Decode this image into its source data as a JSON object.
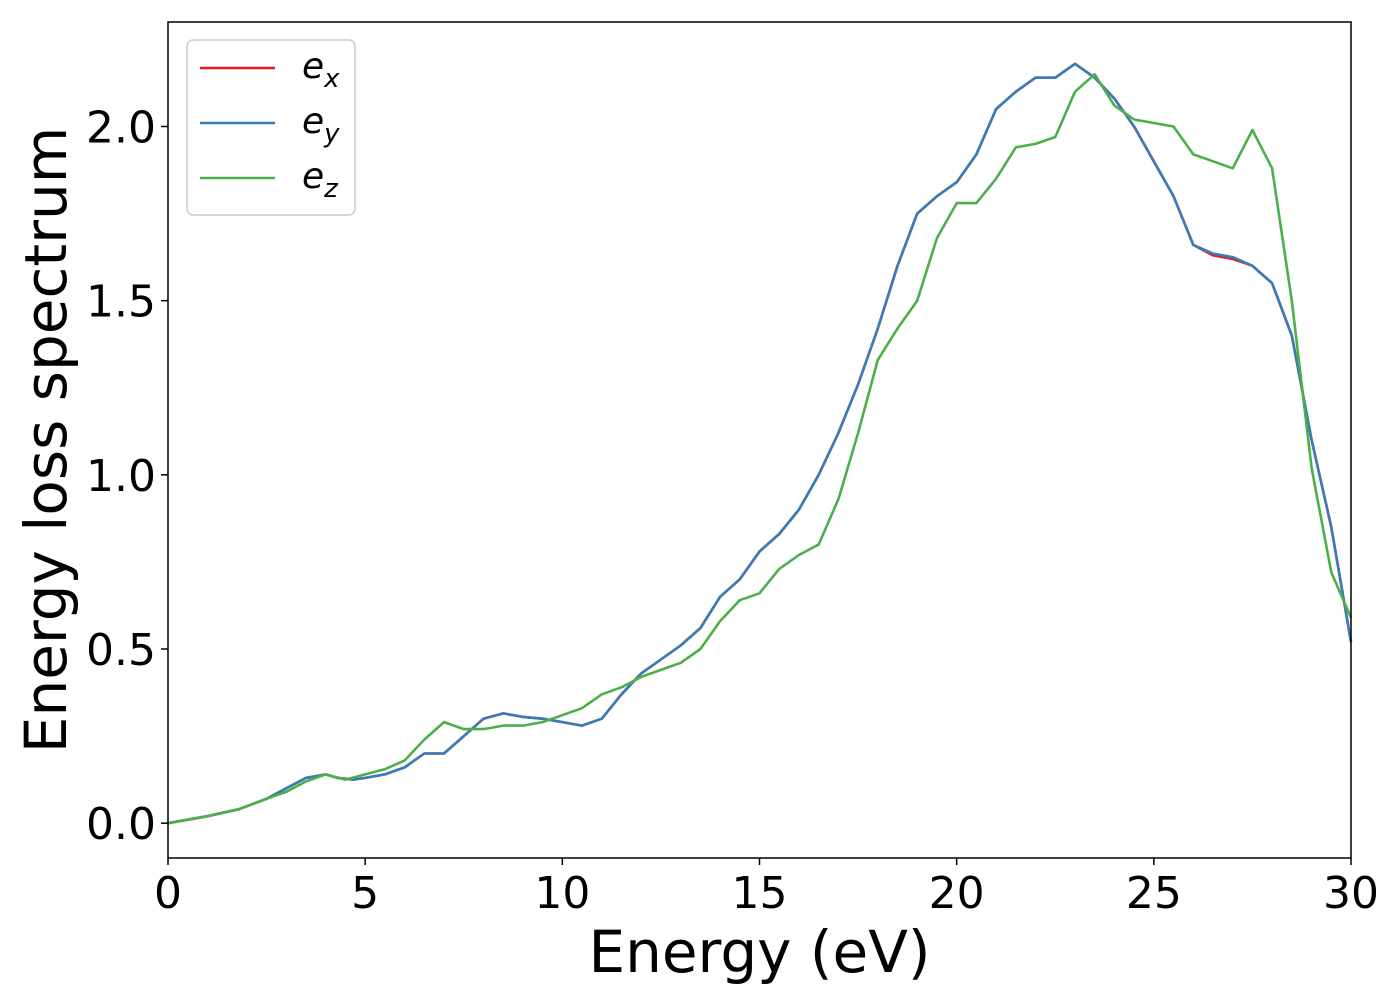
{
  "chart_data": {
    "type": "line",
    "xlabel": "Energy (eV)",
    "ylabel": "Energy loss spectrum",
    "xlim": [
      0,
      30
    ],
    "ylim": [
      -0.1,
      2.3
    ],
    "xticks": [
      0,
      5,
      10,
      15,
      20,
      25,
      30
    ],
    "xtick_labels": [
      "0",
      "5",
      "10",
      "15",
      "20",
      "25",
      "30"
    ],
    "yticks": [
      0.0,
      0.5,
      1.0,
      1.5,
      2.0
    ],
    "ytick_labels": [
      "0.0",
      "0.5",
      "1.0",
      "1.5",
      "2.0"
    ],
    "grid": false,
    "legend_position": "top-left",
    "series": [
      {
        "name": "e_x",
        "label_base": "e",
        "label_sub": "x",
        "color": "#e41a1c",
        "x": [
          0,
          1,
          1.8,
          2.5,
          3,
          3.5,
          4,
          4.3,
          4.7,
          5,
          5.5,
          6,
          6.5,
          7,
          7.5,
          8,
          8.5,
          9,
          9.5,
          10,
          10.5,
          11,
          11.5,
          12,
          12.5,
          13,
          13.5,
          14,
          14.5,
          15,
          15.5,
          16,
          16.5,
          17,
          17.5,
          18,
          18.5,
          19,
          19.5,
          20,
          20.5,
          21,
          21.5,
          22,
          22.5,
          23,
          23.5,
          24,
          24.5,
          25,
          25.5,
          26,
          26.5,
          27,
          27.5,
          28,
          28.5,
          29,
          29.5,
          30
        ],
        "y": [
          0,
          0.02,
          0.04,
          0.07,
          0.1,
          0.13,
          0.14,
          0.13,
          0.125,
          0.13,
          0.14,
          0.16,
          0.2,
          0.2,
          0.25,
          0.3,
          0.315,
          0.305,
          0.3,
          0.29,
          0.28,
          0.3,
          0.37,
          0.43,
          0.47,
          0.51,
          0.56,
          0.65,
          0.7,
          0.78,
          0.83,
          0.9,
          1.0,
          1.12,
          1.26,
          1.42,
          1.6,
          1.75,
          1.8,
          1.84,
          1.92,
          2.05,
          2.1,
          2.14,
          2.14,
          2.18,
          2.14,
          2.08,
          2.0,
          1.9,
          1.8,
          1.66,
          1.63,
          1.62,
          1.6,
          1.55,
          1.4,
          1.1,
          0.85,
          0.52
        ]
      },
      {
        "name": "e_y",
        "label_base": "e",
        "label_sub": "y",
        "color": "#377eb8",
        "x": [
          0,
          1,
          1.8,
          2.5,
          3,
          3.5,
          4,
          4.3,
          4.7,
          5,
          5.5,
          6,
          6.5,
          7,
          7.5,
          8,
          8.5,
          9,
          9.5,
          10,
          10.5,
          11,
          11.5,
          12,
          12.5,
          13,
          13.5,
          14,
          14.5,
          15,
          15.5,
          16,
          16.5,
          17,
          17.5,
          18,
          18.5,
          19,
          19.5,
          20,
          20.5,
          21,
          21.5,
          22,
          22.5,
          23,
          23.5,
          24,
          24.5,
          25,
          25.5,
          26,
          26.5,
          27,
          27.5,
          28,
          28.5,
          29,
          29.5,
          30
        ],
        "y": [
          0,
          0.02,
          0.04,
          0.07,
          0.1,
          0.13,
          0.14,
          0.13,
          0.125,
          0.13,
          0.14,
          0.16,
          0.2,
          0.2,
          0.25,
          0.3,
          0.315,
          0.305,
          0.3,
          0.29,
          0.28,
          0.3,
          0.37,
          0.43,
          0.47,
          0.51,
          0.56,
          0.65,
          0.7,
          0.78,
          0.83,
          0.9,
          1.0,
          1.12,
          1.26,
          1.42,
          1.6,
          1.75,
          1.8,
          1.84,
          1.92,
          2.05,
          2.1,
          2.14,
          2.14,
          2.18,
          2.14,
          2.08,
          2.0,
          1.9,
          1.8,
          1.66,
          1.635,
          1.625,
          1.6,
          1.55,
          1.4,
          1.1,
          0.85,
          0.52
        ]
      },
      {
        "name": "e_z",
        "label_base": "e",
        "label_sub": "z",
        "color": "#4daf4a",
        "x": [
          0,
          1,
          1.8,
          2.5,
          3,
          3.5,
          4,
          4.5,
          5,
          5.5,
          6,
          6.5,
          7,
          7.5,
          8,
          8.5,
          9,
          9.5,
          10,
          10.5,
          11,
          11.5,
          12,
          12.5,
          13,
          13.5,
          14,
          14.5,
          15,
          15.5,
          16,
          16.5,
          17,
          17.5,
          18,
          18.5,
          19,
          19.5,
          20,
          20.5,
          21,
          21.5,
          22,
          22.5,
          23,
          23.5,
          24,
          24.5,
          25,
          25.5,
          26,
          26.5,
          27,
          27.5,
          28,
          28.5,
          29,
          29.5,
          30
        ],
        "y": [
          0,
          0.02,
          0.04,
          0.07,
          0.09,
          0.12,
          0.14,
          0.125,
          0.14,
          0.155,
          0.18,
          0.24,
          0.29,
          0.27,
          0.27,
          0.28,
          0.28,
          0.29,
          0.31,
          0.33,
          0.37,
          0.39,
          0.42,
          0.44,
          0.46,
          0.5,
          0.58,
          0.64,
          0.66,
          0.73,
          0.77,
          0.8,
          0.93,
          1.12,
          1.33,
          1.42,
          1.5,
          1.68,
          1.78,
          1.78,
          1.85,
          1.94,
          1.95,
          1.97,
          2.1,
          2.15,
          2.06,
          2.02,
          2.01,
          2.0,
          1.92,
          1.9,
          1.88,
          1.99,
          1.88,
          1.5,
          1.02,
          0.72,
          0.59
        ]
      }
    ]
  }
}
